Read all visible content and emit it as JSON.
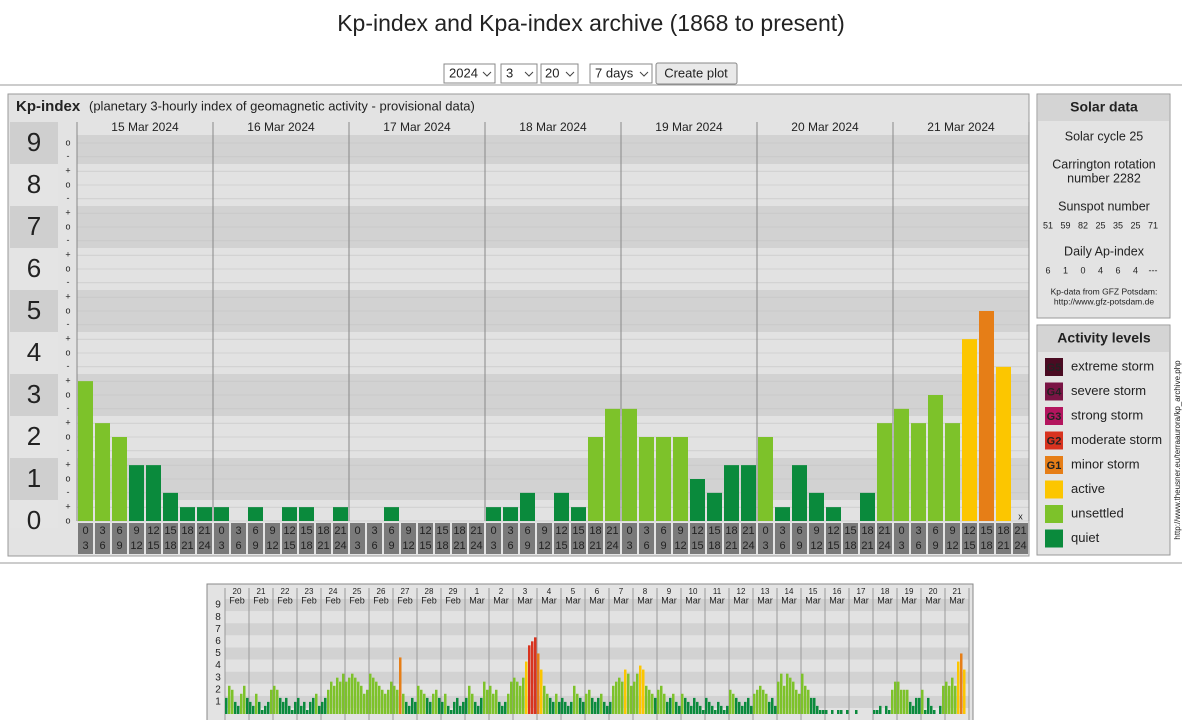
{
  "page": {
    "title": "Kp-index and Kpa-index archive (1868 to present)",
    "controls": {
      "year": "2024",
      "month": "3",
      "day": "20",
      "span": "7 days",
      "button": "Create plot"
    },
    "side_url": "http://www.theusner.eu/terraaurora/kp_archive.php"
  },
  "chart_data": [
    {
      "type": "bar",
      "title": "Kp-index",
      "subtitle": "(planetary 3-hourly index of geomagnetic activity - provisional data)",
      "ylim": [
        0,
        9
      ],
      "yticks": [
        0,
        1,
        2,
        3,
        4,
        5,
        6,
        7,
        8,
        9
      ],
      "subticks": [
        {
          "value": -0.33,
          "label": "-"
        },
        {
          "value": 0,
          "label": "o"
        },
        {
          "value": 0.33,
          "label": "+"
        }
      ],
      "hours": [
        0,
        3,
        6,
        9,
        12,
        15,
        18,
        21,
        24
      ],
      "missing_label": "x",
      "days": [
        {
          "date": "15 Mar 2024",
          "values": [
            3.33,
            2.33,
            2,
            1.33,
            1.33,
            0.67,
            0.33,
            0.33
          ],
          "levels": [
            6,
            6,
            6,
            7,
            7,
            7,
            7,
            7
          ]
        },
        {
          "date": "16 Mar 2024",
          "values": [
            0.33,
            0,
            0.33,
            0,
            0.33,
            0.33,
            0,
            0.33
          ],
          "levels": [
            7,
            7,
            7,
            7,
            7,
            7,
            7,
            7
          ]
        },
        {
          "date": "17 Mar 2024",
          "values": [
            0,
            0,
            0.33,
            0,
            0,
            0,
            0,
            0
          ],
          "levels": [
            7,
            7,
            7,
            7,
            7,
            7,
            7,
            7
          ]
        },
        {
          "date": "18 Mar 2024",
          "values": [
            0.33,
            0.33,
            0.67,
            0,
            0.67,
            0.33,
            2,
            2.67
          ],
          "levels": [
            7,
            7,
            7,
            7,
            7,
            7,
            6,
            6
          ]
        },
        {
          "date": "19 Mar 2024",
          "values": [
            2.67,
            2,
            2,
            2,
            1,
            0.67,
            1.33,
            1.33
          ],
          "levels": [
            6,
            6,
            6,
            6,
            7,
            7,
            7,
            7
          ]
        },
        {
          "date": "20 Mar 2024",
          "values": [
            2,
            0.33,
            1.33,
            0.67,
            0.33,
            0,
            0.67,
            2.33
          ],
          "levels": [
            6,
            7,
            7,
            7,
            7,
            7,
            7,
            6
          ]
        },
        {
          "date": "21 Mar 2024",
          "values": [
            2.67,
            2.33,
            3,
            2.33,
            4.33,
            5,
            3.67,
            null
          ],
          "levels": [
            6,
            6,
            6,
            6,
            5,
            4,
            5,
            null
          ]
        }
      ]
    },
    {
      "type": "bar",
      "ylim": [
        0,
        9
      ],
      "yticks": [
        1,
        2,
        3,
        4,
        5,
        6,
        7,
        8,
        9
      ],
      "days": [
        {
          "day": "20",
          "month": "Feb",
          "values": [
            1.33,
            2.33,
            2,
            1,
            0.67,
            1.67,
            2.33,
            1.33
          ],
          "levels": [
            7,
            6,
            6,
            7,
            7,
            6,
            6,
            7
          ]
        },
        {
          "day": "21",
          "month": "Feb",
          "values": [
            1,
            0.67,
            1.67,
            1,
            0.33,
            0.67,
            1,
            2
          ],
          "levels": [
            7,
            7,
            6,
            7,
            7,
            7,
            7,
            6
          ]
        },
        {
          "day": "22",
          "month": "Feb",
          "values": [
            2.33,
            2,
            1.33,
            1,
            1.33,
            0.67,
            0.33,
            1
          ],
          "levels": [
            6,
            6,
            7,
            7,
            7,
            7,
            7,
            7
          ]
        },
        {
          "day": "23",
          "month": "Feb",
          "values": [
            1.33,
            0.67,
            1,
            0.33,
            1,
            1.33,
            1.67,
            0.67
          ],
          "levels": [
            7,
            7,
            7,
            7,
            7,
            7,
            6,
            7
          ]
        },
        {
          "day": "24",
          "month": "Feb",
          "values": [
            1,
            1.33,
            2,
            2.67,
            2.33,
            3,
            2.67,
            3.33
          ],
          "levels": [
            7,
            7,
            6,
            6,
            6,
            6,
            6,
            6
          ]
        },
        {
          "day": "25",
          "month": "Feb",
          "values": [
            2.67,
            3,
            3.33,
            3,
            2.67,
            2.33,
            1.67,
            2
          ],
          "levels": [
            6,
            6,
            6,
            6,
            6,
            6,
            6,
            6
          ]
        },
        {
          "day": "26",
          "month": "Feb",
          "values": [
            3.33,
            3,
            2.67,
            2.33,
            2,
            1.67,
            2,
            2.67
          ],
          "levels": [
            6,
            6,
            6,
            6,
            6,
            6,
            6,
            6
          ]
        },
        {
          "day": "27",
          "month": "Feb",
          "values": [
            2.33,
            2,
            4.67,
            1.67,
            1,
            0.67,
            1.33,
            1
          ],
          "levels": [
            6,
            6,
            4,
            6,
            7,
            7,
            7,
            7
          ]
        },
        {
          "day": "28",
          "month": "Feb",
          "values": [
            2.33,
            2,
            1.67,
            1.33,
            1,
            1.67,
            2,
            1.33
          ],
          "levels": [
            6,
            6,
            6,
            7,
            7,
            6,
            6,
            7
          ]
        },
        {
          "day": "29",
          "month": "Feb",
          "values": [
            1,
            1.67,
            0.67,
            0.33,
            1,
            1.33,
            0.67,
            1
          ],
          "levels": [
            7,
            6,
            7,
            7,
            7,
            7,
            7,
            7
          ]
        },
        {
          "day": "1",
          "month": "Mar",
          "values": [
            1.33,
            2.33,
            1.67,
            1,
            0.67,
            1.33,
            2.67,
            2
          ],
          "levels": [
            7,
            6,
            6,
            7,
            7,
            7,
            6,
            6
          ]
        },
        {
          "day": "2",
          "month": "Mar",
          "values": [
            2.33,
            1.67,
            2,
            1,
            0.67,
            1,
            1.67,
            2.67
          ],
          "levels": [
            6,
            6,
            6,
            7,
            7,
            7,
            6,
            6
          ]
        },
        {
          "day": "3",
          "month": "Mar",
          "values": [
            3,
            2.67,
            2.33,
            3,
            4.33,
            5.67,
            6,
            6.33
          ],
          "levels": [
            6,
            6,
            6,
            6,
            5,
            3,
            3,
            3
          ]
        },
        {
          "day": "4",
          "month": "Mar",
          "values": [
            5,
            3.67,
            2.33,
            1.67,
            1.33,
            1,
            1.67,
            1
          ],
          "levels": [
            4,
            5,
            6,
            6,
            7,
            7,
            6,
            7
          ]
        },
        {
          "day": "5",
          "month": "Mar",
          "values": [
            1.33,
            1,
            0.67,
            1,
            2.33,
            1.67,
            1.33,
            1
          ],
          "levels": [
            7,
            7,
            7,
            7,
            6,
            6,
            7,
            7
          ]
        },
        {
          "day": "6",
          "month": "Mar",
          "values": [
            1.67,
            2,
            1.33,
            1,
            1.33,
            1.67,
            1,
            0.67
          ],
          "levels": [
            6,
            6,
            7,
            7,
            7,
            6,
            7,
            7
          ]
        },
        {
          "day": "7",
          "month": "Mar",
          "values": [
            1,
            2.33,
            2.67,
            3,
            2.67,
            3.67,
            3.33,
            2.33
          ],
          "levels": [
            7,
            6,
            6,
            6,
            6,
            5,
            6,
            6
          ]
        },
        {
          "day": "8",
          "month": "Mar",
          "values": [
            2.67,
            3.33,
            4,
            3.67,
            2.33,
            2,
            1.67,
            1.33
          ],
          "levels": [
            6,
            6,
            5,
            5,
            6,
            6,
            6,
            7
          ]
        },
        {
          "day": "9",
          "month": "Mar",
          "values": [
            2,
            2.33,
            1.67,
            1,
            1.33,
            1.67,
            1,
            0.67
          ],
          "levels": [
            6,
            6,
            6,
            7,
            7,
            6,
            7,
            7
          ]
        },
        {
          "day": "10",
          "month": "Mar",
          "values": [
            1.67,
            1.33,
            1,
            0.67,
            1.33,
            1,
            0.67,
            0.33
          ],
          "levels": [
            6,
            7,
            7,
            7,
            7,
            7,
            7,
            7
          ]
        },
        {
          "day": "11",
          "month": "Mar",
          "values": [
            1.33,
            1,
            0.67,
            0.33,
            1,
            0.67,
            0.33,
            0.67
          ],
          "levels": [
            7,
            7,
            7,
            7,
            7,
            7,
            7,
            7
          ]
        },
        {
          "day": "12",
          "month": "Mar",
          "values": [
            2,
            1.67,
            1.33,
            1,
            0.67,
            1,
            1.33,
            0.67
          ],
          "levels": [
            6,
            6,
            7,
            7,
            7,
            7,
            7,
            7
          ]
        },
        {
          "day": "13",
          "month": "Mar",
          "values": [
            1.67,
            2,
            2.33,
            2,
            1.67,
            1,
            1.33,
            0.67
          ],
          "levels": [
            6,
            6,
            6,
            6,
            6,
            7,
            7,
            7
          ]
        },
        {
          "day": "14",
          "month": "Mar",
          "values": [
            2.67,
            3.33,
            2.33,
            3.33,
            3,
            2.67,
            2,
            1.67
          ],
          "levels": [
            6,
            6,
            6,
            6,
            6,
            6,
            6,
            6
          ]
        },
        {
          "day": "15",
          "month": "Mar",
          "values": [
            3.33,
            2.33,
            2,
            1.33,
            1.33,
            0.67,
            0.33,
            0.33
          ],
          "levels": [
            6,
            6,
            6,
            7,
            7,
            7,
            7,
            7
          ]
        },
        {
          "day": "16",
          "month": "Mar",
          "values": [
            0.33,
            0,
            0.33,
            0,
            0.33,
            0.33,
            0,
            0.33
          ],
          "levels": [
            7,
            7,
            7,
            7,
            7,
            7,
            7,
            7
          ]
        },
        {
          "day": "17",
          "month": "Mar",
          "values": [
            0,
            0,
            0.33,
            0,
            0,
            0,
            0,
            0
          ],
          "levels": [
            7,
            7,
            7,
            7,
            7,
            7,
            7,
            7
          ]
        },
        {
          "day": "18",
          "month": "Mar",
          "values": [
            0.33,
            0.33,
            0.67,
            0,
            0.67,
            0.33,
            2,
            2.67
          ],
          "levels": [
            7,
            7,
            7,
            7,
            7,
            7,
            6,
            6
          ]
        },
        {
          "day": "19",
          "month": "Mar",
          "values": [
            2.67,
            2,
            2,
            2,
            1,
            0.67,
            1.33,
            1.33
          ],
          "levels": [
            6,
            6,
            6,
            6,
            7,
            7,
            7,
            7
          ]
        },
        {
          "day": "20",
          "month": "Mar",
          "highlight": "#0a8a3c",
          "values": [
            2,
            0.33,
            1.33,
            0.67,
            0.33,
            0,
            0.67,
            2.33
          ],
          "levels": [
            6,
            7,
            7,
            7,
            7,
            7,
            7,
            6
          ]
        },
        {
          "day": "21",
          "month": "Mar",
          "values": [
            2.67,
            2.33,
            3,
            2.33,
            4.33,
            5,
            3.67,
            null
          ],
          "levels": [
            6,
            6,
            6,
            6,
            5,
            4,
            5,
            null
          ]
        }
      ]
    }
  ],
  "solar": {
    "title": "Solar data",
    "cycle": "Solar cycle 25",
    "carrington": [
      "Carrington rotation",
      "number 2282"
    ],
    "sunspot_label": "Sunspot number",
    "sunspots": [
      51,
      59,
      82,
      25,
      35,
      25,
      71
    ],
    "ap_label": "Daily Ap-index",
    "ap": [
      6,
      1,
      0,
      4,
      6,
      4,
      "---"
    ],
    "source": [
      "Kp-data from GFZ Potsdam:",
      "http://www.gfz-potsdam.de"
    ]
  },
  "activity": {
    "title": "Activity levels",
    "levels": [
      {
        "badge": "G5",
        "name": "extreme storm",
        "color": "#4a0b22"
      },
      {
        "badge": "G4",
        "name": "severe storm",
        "color": "#7a1445"
      },
      {
        "badge": "G3",
        "name": "strong storm",
        "color": "#b3155e"
      },
      {
        "badge": "G2",
        "name": "moderate storm",
        "color": "#d8331f"
      },
      {
        "badge": "G1",
        "name": "minor storm",
        "color": "#e67e17"
      },
      {
        "name": "active",
        "color": "#fcc600"
      },
      {
        "name": "unsettled",
        "color": "#7dc22a"
      },
      {
        "name": "quiet",
        "color": "#0a8a3c"
      }
    ]
  }
}
